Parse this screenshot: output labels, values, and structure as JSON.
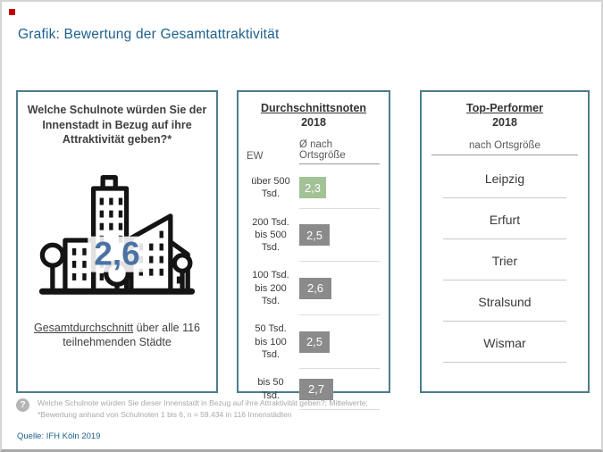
{
  "header": {
    "title": "Grafik: Bewertung der Gesamtattraktivität"
  },
  "colors": {
    "accent_blue": "#20618D",
    "panel_border": "#4C7D8D",
    "highlight_green": "#A3C295",
    "bar_gray": "#8B8B8B",
    "score_blue": "#4A73A4",
    "red_mark": "#C00000"
  },
  "left_panel": {
    "question": "Welche Schulnote würden Sie der Innenstadt in Bezug auf ihre Attraktivität geben?*",
    "icon": "city-skyline-icon",
    "score": "2,6",
    "caption_underline": "Gesamtdurchschnitt",
    "caption_rest": "über alle 116 teilnehmenden Städte"
  },
  "middle_panel": {
    "title": "Durchschnittsnoten",
    "year": "2018",
    "col_left": "EW",
    "col_right": "Ø nach Ortsgröße",
    "rows": [
      {
        "label": "über 500\nTsd.",
        "value": 2.3,
        "value_label": "2,3",
        "highlight": true
      },
      {
        "label": "200 Tsd.\nbis 500\nTsd.",
        "value": 2.5,
        "value_label": "2,5",
        "highlight": false
      },
      {
        "label": "100 Tsd.\nbis 200\nTsd.",
        "value": 2.6,
        "value_label": "2,6",
        "highlight": false
      },
      {
        "label": "50 Tsd.\nbis 100\nTsd.",
        "value": 2.5,
        "value_label": "2,5",
        "highlight": false
      },
      {
        "label": "bis 50\nTsd.",
        "value": 2.7,
        "value_label": "2,7",
        "highlight": false
      }
    ]
  },
  "right_panel": {
    "title": "Top-Performer",
    "year": "2018",
    "subtitle": "nach Ortsgröße",
    "cities": [
      "Leipzig",
      "Erfurt",
      "Trier",
      "Stralsund",
      "Wismar"
    ]
  },
  "footnote": {
    "icon": "question-mark-icon",
    "line1": "Welche Schulnote würden Sie dieser Innenstadt in Bezug auf ihre Attraktivität geben?; Mittelwerte;",
    "line2": "*Bewertung anhand von Schulnoten 1 bis 6, n = 59.434 in 116 Innenstädten"
  },
  "source": "Quelle: IFH Köln 2019",
  "chart_data": {
    "type": "bar",
    "title": "Durchschnittsnoten 2018 – Ø nach Ortsgröße",
    "categories": [
      "über 500 Tsd.",
      "200 Tsd. bis 500 Tsd.",
      "100 Tsd. bis 200 Tsd.",
      "50 Tsd. bis 100 Tsd.",
      "bis 50 Tsd."
    ],
    "values": [
      2.3,
      2.5,
      2.6,
      2.5,
      2.7
    ],
    "xlabel": "EW (Ortsgröße)",
    "ylabel": "Ø Schulnote",
    "scale_note": "Schulnoten 1 bis 6",
    "highlight_category": "über 500 Tsd.",
    "overall_average": 2.6,
    "sample_size": "59.434",
    "city_count": 116,
    "top_performers": [
      "Leipzig",
      "Erfurt",
      "Trier",
      "Stralsund",
      "Wismar"
    ],
    "legend_position": "none",
    "grid": false
  }
}
